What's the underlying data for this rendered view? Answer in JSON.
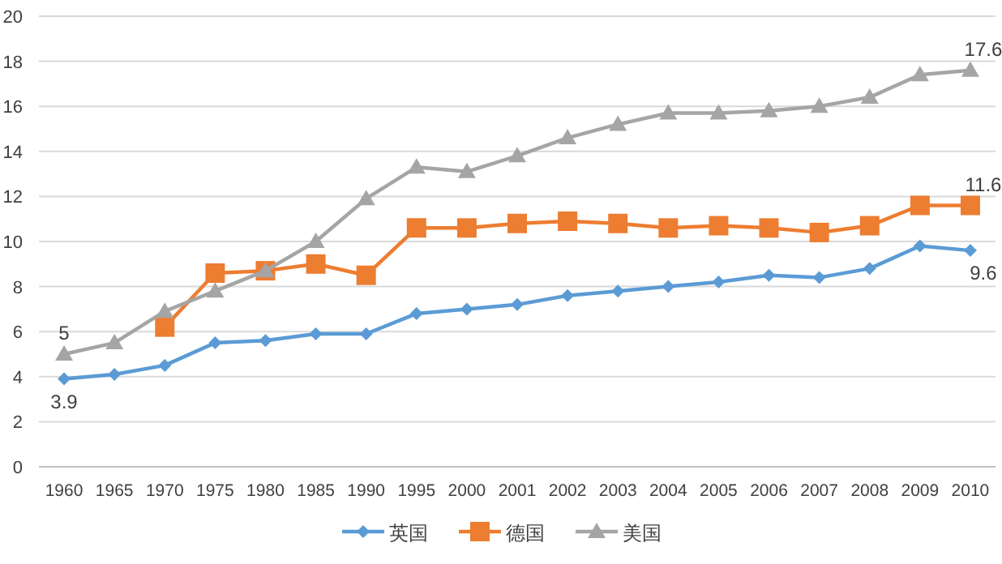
{
  "chart_data": {
    "type": "line",
    "categories": [
      "1960",
      "1965",
      "1970",
      "1975",
      "1980",
      "1985",
      "1990",
      "1995",
      "2000",
      "2001",
      "2002",
      "2003",
      "2004",
      "2005",
      "2006",
      "2007",
      "2008",
      "2009",
      "2010"
    ],
    "ylim": [
      0,
      20
    ],
    "yticks": [
      0,
      2,
      4,
      6,
      8,
      10,
      12,
      14,
      16,
      18,
      20
    ],
    "grid": "y",
    "legend": "bottom",
    "series": [
      {
        "name": "英国",
        "color": "#5b9bd5",
        "marker": "diamond",
        "values": [
          3.9,
          4.1,
          4.5,
          5.5,
          5.6,
          5.9,
          5.9,
          6.8,
          7.0,
          7.2,
          7.6,
          7.8,
          8.0,
          8.2,
          8.5,
          8.4,
          8.8,
          9.8,
          9.6
        ],
        "value_labels": [
          "3.9",
          null,
          null,
          null,
          null,
          null,
          null,
          null,
          null,
          null,
          null,
          null,
          null,
          null,
          null,
          null,
          null,
          null,
          "9.6"
        ]
      },
      {
        "name": "德国",
        "color": "#ed7d31",
        "marker": "square",
        "values": [
          null,
          null,
          6.2,
          8.6,
          8.7,
          9.0,
          8.5,
          10.6,
          10.6,
          10.8,
          10.9,
          10.8,
          10.6,
          10.7,
          10.6,
          10.4,
          10.7,
          11.6,
          11.6
        ],
        "value_labels": [
          null,
          null,
          null,
          null,
          null,
          null,
          null,
          null,
          null,
          null,
          null,
          null,
          null,
          null,
          null,
          null,
          null,
          null,
          "11.6"
        ]
      },
      {
        "name": "美国",
        "color": "#a5a5a5",
        "marker": "triangle",
        "values": [
          5,
          5.5,
          6.9,
          7.8,
          8.7,
          10.0,
          11.9,
          13.3,
          13.1,
          13.8,
          14.6,
          15.2,
          15.7,
          15.7,
          15.8,
          16.0,
          16.4,
          17.4,
          17.6
        ],
        "value_labels": [
          "5",
          null,
          null,
          null,
          null,
          null,
          null,
          null,
          null,
          null,
          null,
          null,
          null,
          null,
          null,
          null,
          null,
          null,
          "17.6"
        ]
      }
    ]
  }
}
